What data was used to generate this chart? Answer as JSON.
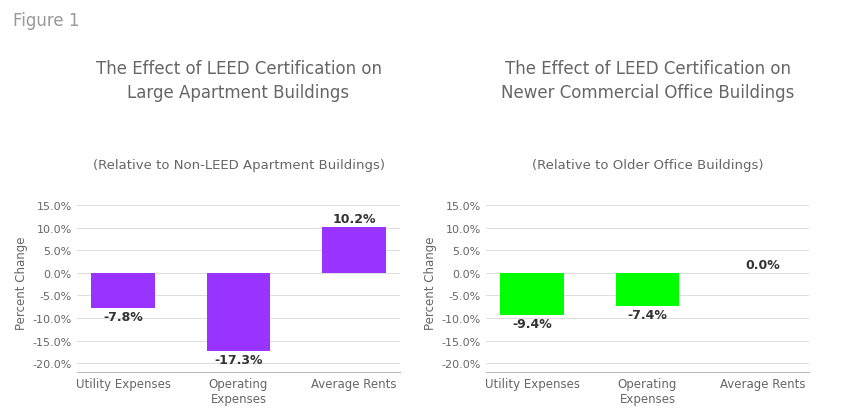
{
  "figure_label": "Figure 1",
  "figure_label_fontsize": 12,
  "figure_label_color": "#999999",
  "background_color": "#ffffff",
  "chart1": {
    "title_line1": "The Effect of LEED Certification on",
    "title_line2": "Large Apartment Buildings",
    "subtitle": "(Relative to Non-LEED Apartment Buildings)",
    "title_fontsize": 12,
    "subtitle_fontsize": 9.5,
    "title_color": "#666666",
    "categories": [
      "Utility Expenses",
      "Operating\nExpenses",
      "Average Rents"
    ],
    "values": [
      -7.8,
      -17.3,
      10.2
    ],
    "bar_color": "#9933ff",
    "label_color": "#333333",
    "ylabel": "Percent Change",
    "ylim": [
      -22,
      18
    ],
    "yticks": [
      -20.0,
      -15.0,
      -10.0,
      -5.0,
      0.0,
      5.0,
      10.0,
      15.0
    ],
    "bar_labels": [
      "-7.8%",
      "-17.3%",
      "10.2%"
    ],
    "bar_width": 0.55
  },
  "chart2": {
    "title_line1": "The Effect of LEED Certification on",
    "title_line2": "Newer Commercial Office Buildings",
    "subtitle": "(Relative to Older Office Buildings)",
    "title_fontsize": 12,
    "subtitle_fontsize": 9.5,
    "title_color": "#666666",
    "categories": [
      "Utility Expenses",
      "Operating\nExpenses",
      "Average Rents"
    ],
    "values": [
      -9.4,
      -7.4,
      0.0
    ],
    "bar_color": "#00ff00",
    "label_color": "#333333",
    "ylabel": "Percent Change",
    "ylim": [
      -22,
      18
    ],
    "yticks": [
      -20.0,
      -15.0,
      -10.0,
      -5.0,
      0.0,
      5.0,
      10.0,
      15.0
    ],
    "bar_labels": [
      "-9.4%",
      "-7.4%",
      "0.0%"
    ],
    "bar_width": 0.55
  }
}
